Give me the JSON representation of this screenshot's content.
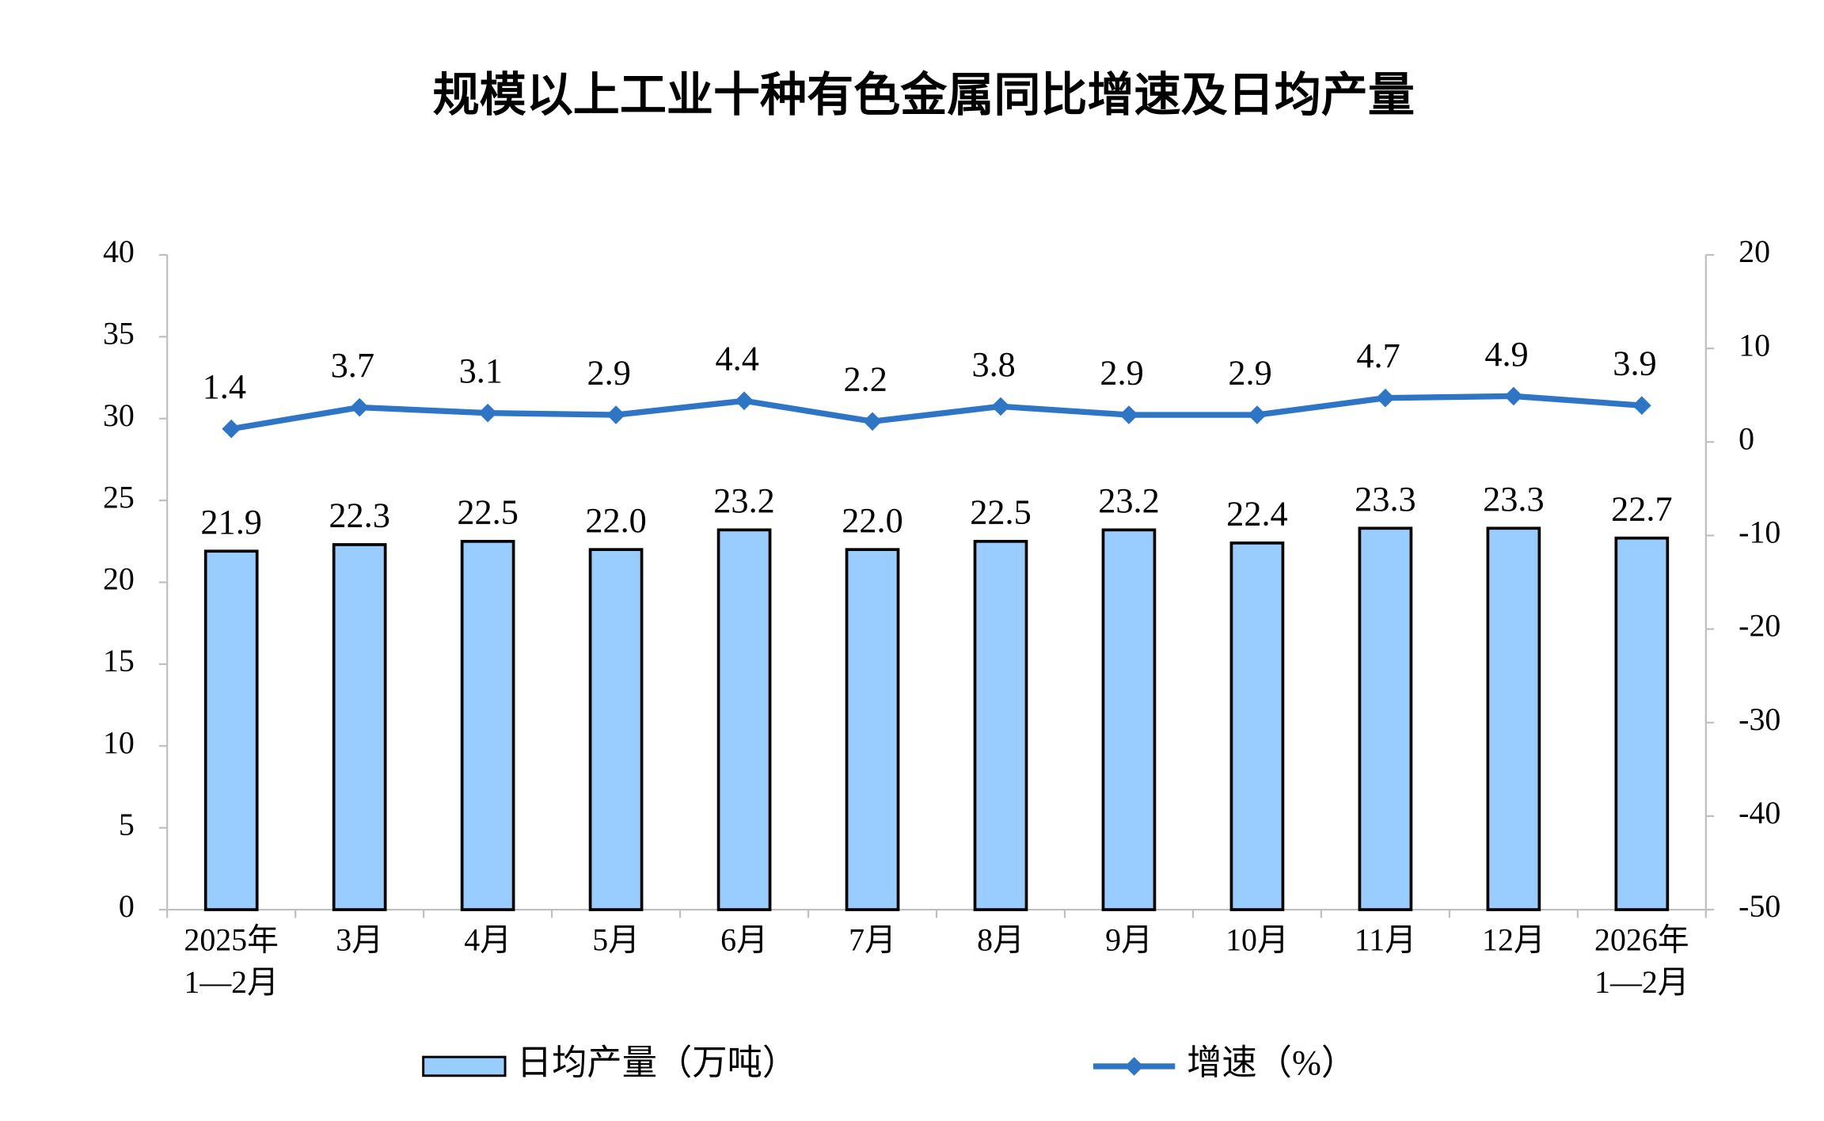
{
  "chart_data": {
    "type": "bar",
    "title": "规模以上工业十种有色金属同比增速及日均产量",
    "categories": [
      "2025年\n1—2月",
      "3月",
      "4月",
      "5月",
      "6月",
      "7月",
      "8月",
      "9月",
      "10月",
      "11月",
      "12月",
      "2026年\n1—2月"
    ],
    "series": [
      {
        "name": "日均产量（万吨）",
        "type": "bar",
        "axis": "y",
        "color": "#99ccff",
        "values": [
          21.9,
          22.3,
          22.5,
          22.0,
          23.2,
          22.0,
          22.5,
          23.2,
          22.4,
          23.3,
          23.3,
          22.7
        ],
        "value_labels": [
          "21.9",
          "22.3",
          "22.5",
          "22.0",
          "23.2",
          "22.0",
          "22.5",
          "23.2",
          "22.4",
          "23.3",
          "23.3",
          "22.7"
        ]
      },
      {
        "name": "增速（%）",
        "type": "line",
        "axis": "y2",
        "color": "#2e75c6",
        "values": [
          1.4,
          3.7,
          3.1,
          2.9,
          4.4,
          2.2,
          3.8,
          2.9,
          2.9,
          4.7,
          4.9,
          3.9
        ]
      }
    ],
    "ylim": [
      0,
      40
    ],
    "yticks": [
      0,
      5,
      10,
      15,
      20,
      25,
      30,
      35,
      40
    ],
    "y2lim": [
      -50,
      20
    ],
    "y2ticks": [
      -50,
      -40,
      -30,
      -20,
      -10,
      0,
      10,
      20
    ],
    "grid": false,
    "legend": "bottom"
  }
}
